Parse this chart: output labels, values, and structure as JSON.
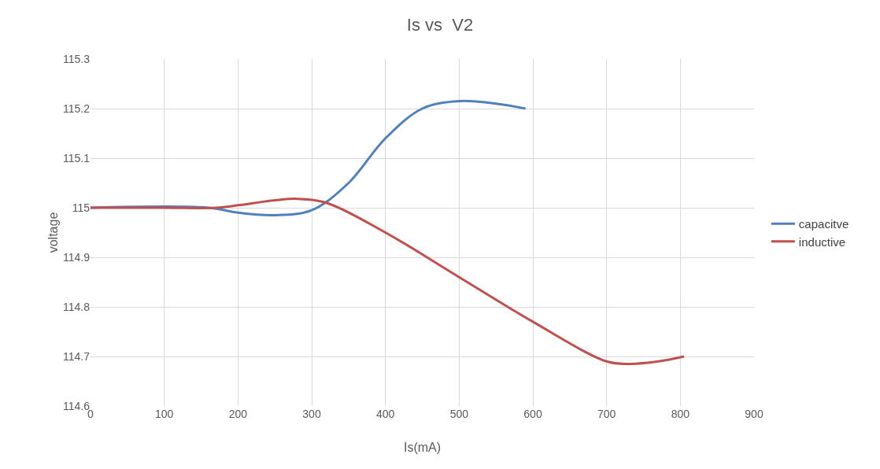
{
  "chart_data": {
    "type": "line",
    "title": "Is vs  V2",
    "xlabel": "Is(mA)",
    "ylabel": "voltage",
    "xlim": [
      0,
      900
    ],
    "xticks": [
      0,
      100,
      200,
      300,
      400,
      500,
      600,
      700,
      800,
      900
    ],
    "ylim": [
      114.6,
      115.3
    ],
    "yticks": [
      114.6,
      114.7,
      114.8,
      114.9,
      115,
      115.1,
      115.2,
      115.3
    ],
    "grid": true,
    "legend": "right",
    "marker": "none",
    "line_style": "solid",
    "series": [
      {
        "name": "capacitve",
        "color": "#4f81bd",
        "x": [
          0,
          160,
          200,
          250,
          300,
          350,
          400,
          450,
          500,
          550,
          590
        ],
        "values": [
          115,
          115,
          114.99,
          114.985,
          114.995,
          115.05,
          115.14,
          115.2,
          115.215,
          115.21,
          115.2
        ]
      },
      {
        "name": "inductive",
        "color": "#c0504d",
        "x": [
          0,
          100,
          170,
          200,
          250,
          280,
          320,
          400,
          500,
          600,
          700,
          730,
          770,
          805
        ],
        "values": [
          115,
          115,
          115,
          115.005,
          115.015,
          115.018,
          115.01,
          114.95,
          114.86,
          114.77,
          114.69,
          114.685,
          114.69,
          114.7
        ]
      }
    ]
  }
}
